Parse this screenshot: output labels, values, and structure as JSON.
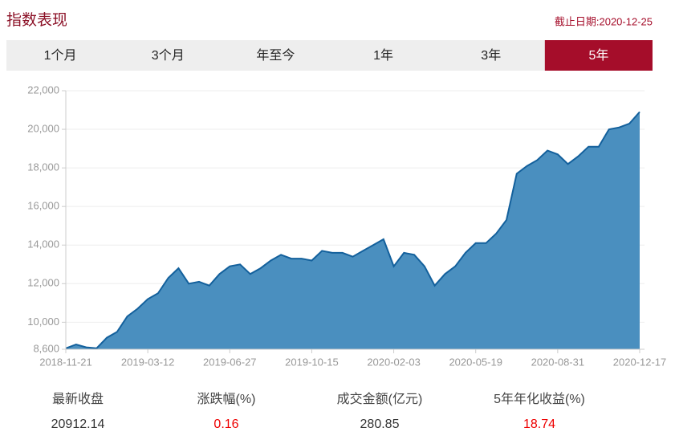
{
  "header": {
    "title": "指数表现",
    "date": "截止日期:2020-12-25"
  },
  "tabs": [
    "1个月",
    "3个月",
    "年至今",
    "1年",
    "3年",
    "5年"
  ],
  "active_tab": 5,
  "chart_data": {
    "type": "area",
    "color": "#4a8fbf",
    "line_color": "#13609c",
    "grid": true,
    "categories": [
      "2018-11-21",
      null,
      null,
      null,
      null,
      null,
      null,
      null,
      "2019-03-12",
      null,
      null,
      null,
      null,
      null,
      null,
      null,
      "2019-06-27",
      null,
      null,
      null,
      null,
      null,
      null,
      null,
      "2019-10-15",
      null,
      null,
      null,
      null,
      null,
      null,
      null,
      "2020-02-03",
      null,
      null,
      null,
      null,
      null,
      null,
      null,
      "2020-05-19",
      null,
      null,
      null,
      null,
      null,
      null,
      null,
      "2020-08-31",
      null,
      null,
      null,
      null,
      null,
      null,
      null,
      "2020-12-17"
    ],
    "values": [
      8650,
      8850,
      8700,
      8650,
      9200,
      9500,
      10300,
      10700,
      11200,
      11500,
      12300,
      12800,
      12000,
      12100,
      11900,
      12500,
      12900,
      13000,
      12500,
      12800,
      13200,
      13500,
      13300,
      13300,
      13200,
      13700,
      13600,
      13600,
      13400,
      13700,
      14000,
      14300,
      12900,
      13600,
      13500,
      12900,
      11900,
      12500,
      12900,
      13600,
      14100,
      14100,
      14600,
      15300,
      17700,
      18100,
      18400,
      18900,
      18700,
      18200,
      18600,
      19100,
      19100,
      20000,
      20100,
      20300,
      20900
    ],
    "ylim": [
      8600,
      22000
    ],
    "yticks": [
      {
        "value": 8600,
        "label": "8,600"
      },
      {
        "value": 10000,
        "label": "10,000"
      },
      {
        "value": 12000,
        "label": "12,000"
      },
      {
        "value": 14000,
        "label": "14,000"
      },
      {
        "value": 16000,
        "label": "16,000"
      },
      {
        "value": 18000,
        "label": "18,000"
      },
      {
        "value": 20000,
        "label": "20,000"
      },
      {
        "value": 22000,
        "label": "22,000"
      }
    ]
  },
  "stats": [
    {
      "label": "最新收盘",
      "value": "20912.14",
      "highlight": false
    },
    {
      "label": "涨跌幅(%)",
      "value": "0.16",
      "highlight": true
    },
    {
      "label": "成交金额(亿元)",
      "value": "280.85",
      "highlight": false
    },
    {
      "label": "5年年化收益(%)",
      "value": "18.74",
      "highlight": true
    }
  ]
}
